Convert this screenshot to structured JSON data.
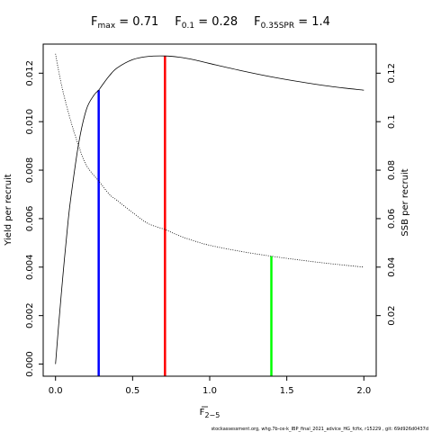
{
  "chart_data": {
    "type": "line",
    "title": {
      "parts": [
        {
          "base": "F",
          "sub": "max",
          "value": " = 0.71"
        },
        {
          "base": "F",
          "sub": "0.1",
          "value": " = 0.28"
        },
        {
          "base": "F",
          "sub": "0.35SPR",
          "value": " = 1.4"
        }
      ]
    },
    "xlabel": {
      "base": "F",
      "sub": "2−5"
    },
    "ylabel_left": "Yield per recruit",
    "ylabel_right": "SSB per recruit",
    "xlim": [
      -0.08,
      2.08
    ],
    "ylim_left": [
      -0.0005,
      0.0132
    ],
    "ylim_right": [
      -0.005,
      0.132
    ],
    "x_ticks": [
      {
        "value": 0.0,
        "label": "0.0"
      },
      {
        "value": 0.5,
        "label": "0.5"
      },
      {
        "value": 1.0,
        "label": "1.0"
      },
      {
        "value": 1.5,
        "label": "1.5"
      },
      {
        "value": 2.0,
        "label": "2.0"
      }
    ],
    "y_ticks_left": [
      {
        "value": 0.0,
        "label": "0.000"
      },
      {
        "value": 0.002,
        "label": "0.002"
      },
      {
        "value": 0.004,
        "label": "0.004"
      },
      {
        "value": 0.006,
        "label": "0.006"
      },
      {
        "value": 0.008,
        "label": "0.008"
      },
      {
        "value": 0.01,
        "label": "0.010"
      },
      {
        "value": 0.012,
        "label": "0.012"
      }
    ],
    "y_ticks_right": [
      {
        "value": 0.02,
        "label": "0.02"
      },
      {
        "value": 0.04,
        "label": "0.04"
      },
      {
        "value": 0.06,
        "label": "0.06"
      },
      {
        "value": 0.08,
        "label": "0.08"
      },
      {
        "value": 0.1,
        "label": "0.1"
      },
      {
        "value": 0.12,
        "label": "0.12"
      }
    ],
    "series": [
      {
        "axis": "left",
        "style": "solid",
        "x": [
          0.0,
          0.02,
          0.05,
          0.08,
          0.1,
          0.15,
          0.2,
          0.25,
          0.28,
          0.3,
          0.35,
          0.4,
          0.5,
          0.6,
          0.71,
          0.8,
          0.9,
          1.0,
          1.2,
          1.4,
          1.6,
          1.8,
          2.0
        ],
        "y": [
          0.0,
          0.0016,
          0.0038,
          0.0058,
          0.0069,
          0.0091,
          0.0105,
          0.0111,
          0.0113,
          0.01148,
          0.0119,
          0.01222,
          0.01256,
          0.01269,
          0.01271,
          0.01266,
          0.01255,
          0.0124,
          0.01211,
          0.01185,
          0.01163,
          0.01144,
          0.0113
        ]
      },
      {
        "axis": "right",
        "style": "dotted",
        "x": [
          0.0,
          0.02,
          0.05,
          0.1,
          0.15,
          0.2,
          0.28,
          0.35,
          0.4,
          0.5,
          0.6,
          0.71,
          0.8,
          0.9,
          1.0,
          1.2,
          1.4,
          1.6,
          1.8,
          2.0
        ],
        "y": [
          0.128,
          0.121,
          0.112,
          0.1,
          0.09,
          0.082,
          0.0755,
          0.07,
          0.0675,
          0.0625,
          0.058,
          0.0555,
          0.053,
          0.0508,
          0.049,
          0.0465,
          0.0445,
          0.0428,
          0.0413,
          0.04
        ]
      }
    ],
    "reference_lines": [
      {
        "x": 0.28,
        "axis": "left",
        "y": 0.0113,
        "color": "#0000ff"
      },
      {
        "x": 0.71,
        "axis": "left",
        "y": 0.0127,
        "color": "#ff0000"
      },
      {
        "x": 1.4,
        "axis": "right",
        "y": 0.0445,
        "color": "#00ff00"
      }
    ],
    "footnote": "stockassessment.org,  whg.7b-ce-k_IBP_final_2021_advice_HG_fcfix,  r15229 ,  git: 69d926d0437d"
  }
}
